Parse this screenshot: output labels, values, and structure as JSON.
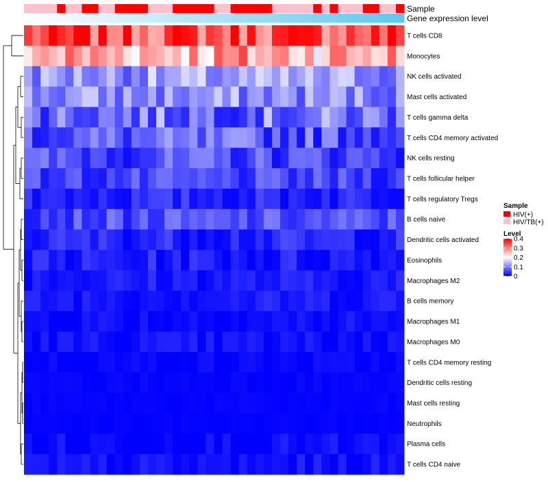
{
  "chart_data": {
    "type": "heatmap",
    "title": "",
    "n_columns": 46,
    "rows": [
      "T cells CD8",
      "Monocytes",
      "NK cells activated",
      "Mast cells activated",
      "T cells gamma delta",
      "T cells CD4 memory activated",
      "NK cells resting",
      "T cells follicular helper",
      "T cells regulatory  Tregs",
      "B cells naive",
      "Dendritic cells activated",
      "Eosinophils",
      "Macrophages M2",
      "B cells memory",
      "Macrophages M1",
      "Macrophages M0",
      "T cells CD4 memory resting",
      "Dendritic cells resting",
      "Mast cells resting",
      "Neutrophils",
      "Plasma cells",
      "T cells CD4 naive"
    ],
    "row_means": [
      0.34,
      0.27,
      0.12,
      0.11,
      0.09,
      0.07,
      0.06,
      0.05,
      0.03,
      0.06,
      0.03,
      0.02,
      0.02,
      0.02,
      0.01,
      0.01,
      0.005,
      0.004,
      0.003,
      0.002,
      0.006,
      0.01
    ],
    "row_spread": [
      0.08,
      0.09,
      0.06,
      0.06,
      0.07,
      0.06,
      0.05,
      0.04,
      0.03,
      0.04,
      0.03,
      0.03,
      0.02,
      0.02,
      0.02,
      0.02,
      0.01,
      0.005,
      0.004,
      0.003,
      0.02,
      0.02
    ],
    "annotations": [
      {
        "name": "Sample",
        "values": [
          "HIV/TB(+)",
          "HIV/TB(+)",
          "HIV/TB(+)",
          "HIV/TB(+)",
          "HIV(+)",
          "HIV/TB(+)",
          "HIV/TB(+)",
          "HIV(+)",
          "HIV(+)",
          "HIV/TB(+)",
          "HIV/TB(+)",
          "HIV(+)",
          "HIV(+)",
          "HIV(+)",
          "HIV(+)",
          "HIV/TB(+)",
          "HIV/TB(+)",
          "HIV/TB(+)",
          "HIV(+)",
          "HIV(+)",
          "HIV(+)",
          "HIV(+)",
          "HIV(+)",
          "HIV/TB(+)",
          "HIV/TB(+)",
          "HIV(+)",
          "HIV(+)",
          "HIV(+)",
          "HIV(+)",
          "HIV(+)",
          "HIV/TB(+)",
          "HIV/TB(+)",
          "HIV/TB(+)",
          "HIV/TB(+)",
          "HIV/TB(+)",
          "HIV(+)",
          "HIV/TB(+)",
          "HIV(+)",
          "HIV/TB(+)",
          "HIV/TB(+)",
          "HIV/TB(+)",
          "HIV(+)",
          "HIV(+)",
          "HIV/TB(+)",
          "HIV/TB(+)",
          "HIV(+)"
        ]
      },
      {
        "name": "Gene expression level",
        "type": "gradient",
        "from": "#ffffff",
        "to": "#5ec8ef"
      }
    ],
    "legend": {
      "position": "right",
      "sample": {
        "title": "Sample",
        "items": [
          {
            "label": "HIV(+)",
            "color": "#ff0000"
          },
          {
            "label": "HIV/TB(+)",
            "color": "#ffc0cb"
          }
        ]
      },
      "level": {
        "title": "Level",
        "min": 0,
        "max": 0.4,
        "ticks": [
          {
            "value": 0.4,
            "label": "0.4"
          },
          {
            "value": 0.3,
            "label": "0.3"
          },
          {
            "value": 0.2,
            "label": "0.2"
          },
          {
            "value": 0.1,
            "label": "0.1"
          },
          {
            "value": 0,
            "label": "0"
          }
        ],
        "colors": {
          "low": "#0000ff",
          "mid": "#ffffff",
          "high": "#ff0000"
        }
      }
    },
    "dendrogram": "hierarchical clustering of rows (left side)"
  }
}
